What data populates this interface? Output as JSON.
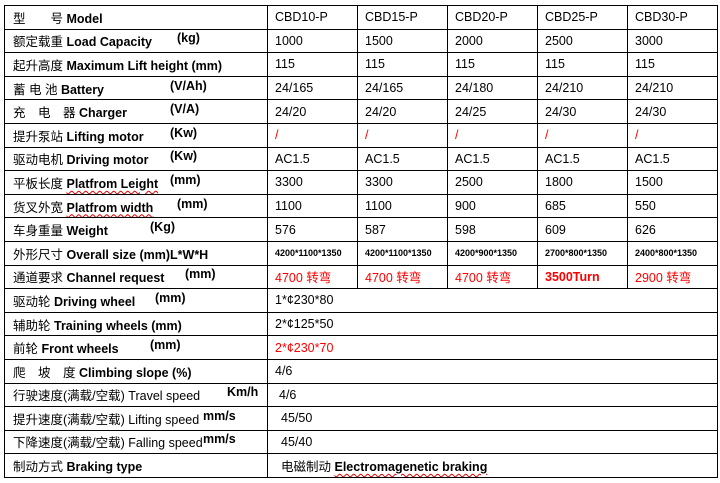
{
  "columns": [
    "CBD10-P",
    "CBD15-P",
    "CBD20-P",
    "CBD25-P",
    "CBD30-P"
  ],
  "rows": [
    {
      "cn": "型　　号",
      "en": "Model",
      "unit": "",
      "values": [
        "CBD10-P",
        "CBD15-P",
        "CBD20-P",
        "CBD25-P",
        "CBD30-P"
      ]
    },
    {
      "cn": "额定载重",
      "en": "Load Capacity",
      "unit": "(kg)",
      "values": [
        "1000",
        "1500",
        "2000",
        "2500",
        "3000"
      ]
    },
    {
      "cn": "起升高度",
      "en": "Maximum Lift height (mm)",
      "unit": "",
      "values": [
        "115",
        "115",
        "115",
        "115",
        "115"
      ]
    },
    {
      "cn": "蓄 电 池",
      "en": "Battery",
      "unit": "(V/Ah)",
      "values": [
        "24/165",
        "24/165",
        "24/180",
        "24/210",
        "24/210"
      ]
    },
    {
      "cn": "充　电　器",
      "en": "Charger",
      "unit": "(V/A)",
      "values": [
        "24/20",
        "24/20",
        "24/25",
        "24/30",
        "24/30"
      ]
    },
    {
      "cn": "提升泵站",
      "en": "Lifting motor",
      "unit": "(Kw)",
      "values": [
        "/",
        "/",
        "/",
        "/",
        "/"
      ]
    },
    {
      "cn": "驱动电机",
      "en": "Driving motor",
      "unit": "(Kw)",
      "values": [
        "AC1.5",
        "AC1.5",
        "AC1.5",
        "AC1.5",
        "AC1.5"
      ]
    },
    {
      "cn": "平板长度",
      "en": "Platfrom Leight",
      "unit": "(mm)",
      "values": [
        "3300",
        "3300",
        "2500",
        "1800",
        "1500"
      ]
    },
    {
      "cn": "货叉外宽",
      "en": "Platfrom width",
      "unit": "(mm)",
      "values": [
        "1100",
        "1100",
        "900",
        "685",
        "550"
      ]
    },
    {
      "cn": "车身重量",
      "en": "Weight",
      "unit": "(Kg)",
      "values": [
        "576",
        "587",
        "598",
        "609",
        "626"
      ]
    },
    {
      "cn": "外形尺寸",
      "en": "Overall size (mm)L*W*H",
      "unit": "",
      "values": [
        "4200*1100*1350",
        "4200*1100*1350",
        "4200*900*1350",
        "2700*800*1350",
        "2400*800*1350"
      ]
    },
    {
      "cn": "通道要求",
      "en": "Channel request",
      "unit": "(mm)",
      "values": [
        "4700 转弯",
        "4700 转弯",
        "4700 转弯",
        "3500Turn",
        "2900 转弯"
      ]
    },
    {
      "cn": "驱动轮",
      "en": "Driving wheel",
      "unit": "(mm)",
      "value": "1*¢230*80"
    },
    {
      "cn": "辅助轮",
      "en": "Training wheels (mm)",
      "unit": "",
      "value": "2*¢125*50"
    },
    {
      "cn": "前轮",
      "en": "Front wheels",
      "unit": "(mm)",
      "value": "2*¢230*70"
    },
    {
      "cn": "爬　坡　度",
      "en": "Climbing slope (%)",
      "unit": "",
      "value": "4/6"
    },
    {
      "cn": "行驶速度(满载/空载)",
      "en": "Travel speed",
      "unit": "Km/h",
      "value": "4/6"
    },
    {
      "cn": "提升速度(满载/空载)",
      "en": "Lifting speed",
      "unit": "mm/s",
      "value": "45/50"
    },
    {
      "cn": "下降速度(满载/空载)",
      "en": "Falling speed",
      "unit": "mm/s",
      "value": "45/40"
    },
    {
      "cn": "制动方式",
      "en": "Braking type",
      "unit": "",
      "value_cn": "电磁制动",
      "value_en": "Electromagenetic braking"
    }
  ],
  "colors": {
    "highlight": "#ff0000"
  }
}
